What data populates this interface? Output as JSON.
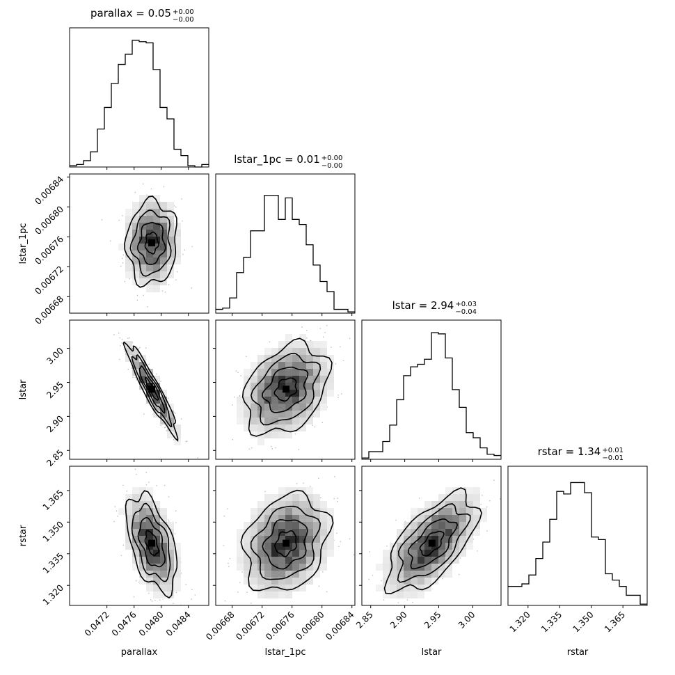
{
  "chart_data": {
    "type": "corner",
    "parameters": [
      {
        "name": "parallax",
        "median": "0.05",
        "plus": "+0.00",
        "minus": "−0.00",
        "range": [
          0.04665,
          0.0487
        ],
        "ticks": [
          0.0472,
          0.0476,
          0.048,
          0.0484
        ],
        "tick_labels": [
          "0.0472",
          "0.0476",
          "0.0480",
          "0.0484"
        ],
        "mean": 0.04786,
        "sd": 0.000185
      },
      {
        "name": "lstar_1pc",
        "median": "0.01",
        "plus": "+0.00",
        "minus": "−0.00",
        "range": [
          0.006658,
          0.006844
        ],
        "ticks": [
          0.00668,
          0.00672,
          0.00676,
          0.0068,
          0.00684
        ],
        "tick_labels": [
          "0.00668",
          "0.00672",
          "0.00676",
          "0.00680",
          "0.00684"
        ],
        "mean": 0.006752,
        "sd": 2.8e-05
      },
      {
        "name": "lstar",
        "median": "2.94",
        "plus": "+0.03",
        "minus": "−0.04",
        "range": [
          2.837,
          3.0415
        ],
        "ticks": [
          2.85,
          2.9,
          2.95,
          3.0
        ],
        "tick_labels": [
          "2.85",
          "2.90",
          "2.95",
          "3.00"
        ],
        "mean": 2.94,
        "sd": 0.033
      },
      {
        "name": "rstar",
        "median": "1.34",
        "plus": "+0.01",
        "minus": "−0.01",
        "range": [
          1.3105,
          1.3765
        ],
        "ticks": [
          1.32,
          1.335,
          1.35,
          1.365
        ],
        "tick_labels": [
          "1.320",
          "1.335",
          "1.350",
          "1.365"
        ],
        "mean": 1.34,
        "sd": 0.0115
      }
    ],
    "histograms": [
      [
        0.01,
        0.02,
        0.05,
        0.12,
        0.3,
        0.47,
        0.66,
        0.81,
        0.89,
        1.0,
        0.99,
        0.98,
        0.77,
        0.47,
        0.38,
        0.14,
        0.09,
        0.01,
        0.0,
        0.02
      ],
      [
        0.03,
        0.04,
        0.12,
        0.32,
        0.44,
        0.65,
        0.65,
        0.93,
        0.93,
        0.74,
        0.91,
        0.74,
        0.7,
        0.54,
        0.38,
        0.25,
        0.17,
        0.03,
        0.03,
        0.01
      ],
      [
        0.01,
        0.06,
        0.06,
        0.14,
        0.27,
        0.47,
        0.66,
        0.73,
        0.75,
        0.79,
        1.0,
        0.99,
        0.8,
        0.55,
        0.41,
        0.21,
        0.17,
        0.09,
        0.04,
        0.03
      ],
      [
        0.15,
        0.15,
        0.17,
        0.24,
        0.37,
        0.5,
        0.68,
        0.9,
        0.88,
        0.97,
        0.97,
        0.89,
        0.54,
        0.52,
        0.25,
        0.2,
        0.15,
        0.08,
        0.08,
        0.01
      ]
    ],
    "pairs": [
      {
        "row": 1,
        "col": 0,
        "rho": 0.05
      },
      {
        "row": 2,
        "col": 0,
        "rho": -0.93
      },
      {
        "row": 2,
        "col": 1,
        "rho": 0.32
      },
      {
        "row": 3,
        "col": 0,
        "rho": -0.5
      },
      {
        "row": 3,
        "col": 1,
        "rho": 0.22
      },
      {
        "row": 3,
        "col": 2,
        "rho": 0.62
      }
    ],
    "contour_levels_sigma": [
      0.5,
      1.0,
      1.5,
      2.0
    ],
    "grid": false
  }
}
